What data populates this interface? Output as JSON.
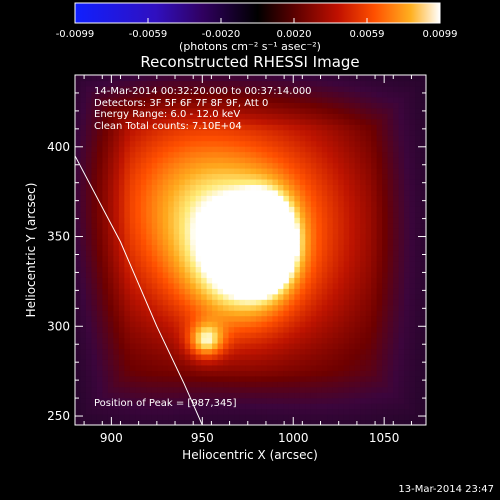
{
  "colorbar": {
    "tick_labels": [
      "-0.0099",
      "-0.0059",
      "-0.0020",
      "0.0020",
      "0.0059",
      "0.0099"
    ],
    "units": "(photons cm⁻² s⁻¹ asec⁻²)",
    "colors": [
      "#1020ff",
      "#3010c0",
      "#300060",
      "#000000",
      "#5a0000",
      "#c01000",
      "#ff5000",
      "#ffb020",
      "#ffffff"
    ]
  },
  "annotations": {
    "time_range": "14-Mar-2014 00:32:20.000 to 00:37:14.000",
    "detectors": "Detectors: 3F 5F 6F 7F 8F 9F, Att 0",
    "energy": "Energy Range: 6.0 - 12.0 keV",
    "clean": "Clean    Total counts: 7.10E+04",
    "peak": "Position of Peak = [987,345]"
  },
  "footer": {
    "timestamp": "13-Mar-2014 23:47"
  },
  "chart_data": {
    "type": "heatmap",
    "title": "Reconstructed RHESSI Image",
    "xlabel": "Heliocentric X (arcsec)",
    "ylabel": "Heliocentric Y (arcsec)",
    "xlim": [
      880,
      1073
    ],
    "ylim": [
      245,
      440
    ],
    "xticks": [
      900,
      950,
      1000,
      1050
    ],
    "yticks": [
      250,
      300,
      350,
      400
    ],
    "peak": {
      "x": 987,
      "y": 345
    },
    "limb_curve": [
      [
        880,
        395
      ],
      [
        905,
        347
      ],
      [
        925,
        300
      ],
      [
        940,
        268
      ],
      [
        950,
        245
      ]
    ],
    "sources": [
      {
        "x": 985,
        "y": 347,
        "amplitude": 1.0,
        "sx": 10,
        "sy": 15
      },
      {
        "x": 970,
        "y": 330,
        "amplitude": 0.55,
        "sx": 22,
        "sy": 30
      },
      {
        "x": 952,
        "y": 292,
        "amplitude": 0.5,
        "sx": 7,
        "sy": 7
      },
      {
        "x": 960,
        "y": 365,
        "amplitude": 0.35,
        "sx": 35,
        "sy": 40
      },
      {
        "x": 940,
        "y": 380,
        "amplitude": 0.3,
        "sx": 45,
        "sy": 45
      },
      {
        "x": 1015,
        "y": 350,
        "amplitude": 0.3,
        "sx": 30,
        "sy": 55
      },
      {
        "x": 920,
        "y": 330,
        "amplitude": 0.15,
        "sx": 25,
        "sy": 60
      }
    ],
    "background_level": 0.12
  }
}
